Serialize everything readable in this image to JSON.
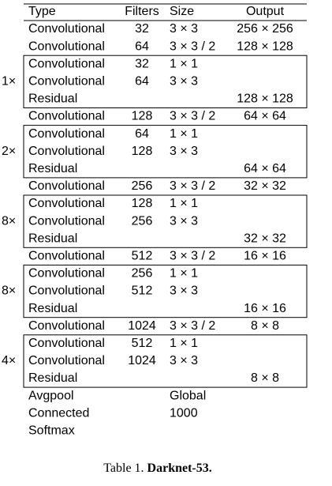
{
  "table": {
    "header": {
      "type": "Type",
      "filters": "Filters",
      "size": "Size",
      "output": "Output"
    },
    "body": [
      {
        "type": "Convolutional",
        "filters": "32",
        "size": "3 × 3",
        "output": "256 × 256"
      },
      {
        "type": "Convolutional",
        "filters": "64",
        "size": "3 × 3 / 2",
        "output": "128 × 128"
      },
      {
        "multiplier": "1×",
        "rows": [
          {
            "type": "Convolutional",
            "filters": "32",
            "size": "1 × 1"
          },
          {
            "type": "Convolutional",
            "filters": "64",
            "size": "3 × 3"
          },
          {
            "type": "Residual",
            "output": "128 × 128"
          }
        ]
      },
      {
        "type": "Convolutional",
        "filters": "128",
        "size": "3 × 3 / 2",
        "output": "64 × 64"
      },
      {
        "multiplier": "2×",
        "rows": [
          {
            "type": "Convolutional",
            "filters": "64",
            "size": "1 × 1"
          },
          {
            "type": "Convolutional",
            "filters": "128",
            "size": "3 × 3"
          },
          {
            "type": "Residual",
            "output": "64 × 64"
          }
        ]
      },
      {
        "type": "Convolutional",
        "filters": "256",
        "size": "3 × 3 / 2",
        "output": "32 × 32"
      },
      {
        "multiplier": "8×",
        "rows": [
          {
            "type": "Convolutional",
            "filters": "128",
            "size": "1 × 1"
          },
          {
            "type": "Convolutional",
            "filters": "256",
            "size": "3 × 3"
          },
          {
            "type": "Residual",
            "output": "32 × 32"
          }
        ]
      },
      {
        "type": "Convolutional",
        "filters": "512",
        "size": "3 × 3 / 2",
        "output": "16 × 16"
      },
      {
        "multiplier": "8×",
        "rows": [
          {
            "type": "Convolutional",
            "filters": "256",
            "size": "1 × 1"
          },
          {
            "type": "Convolutional",
            "filters": "512",
            "size": "3 × 3"
          },
          {
            "type": "Residual",
            "output": "16 × 16"
          }
        ]
      },
      {
        "type": "Convolutional",
        "filters": "1024",
        "size": "3 × 3 / 2",
        "output": "8 × 8"
      },
      {
        "multiplier": "4×",
        "rows": [
          {
            "type": "Convolutional",
            "filters": "512",
            "size": "1 × 1"
          },
          {
            "type": "Convolutional",
            "filters": "1024",
            "size": "3 × 3"
          },
          {
            "type": "Residual",
            "output": "8 × 8"
          }
        ]
      },
      {
        "type": "Avgpool",
        "size": "Global"
      },
      {
        "type": "Connected",
        "size": "1000"
      },
      {
        "type": "Softmax"
      }
    ]
  },
  "caption": {
    "label": "Table 1.",
    "title": "Darknet-53."
  }
}
